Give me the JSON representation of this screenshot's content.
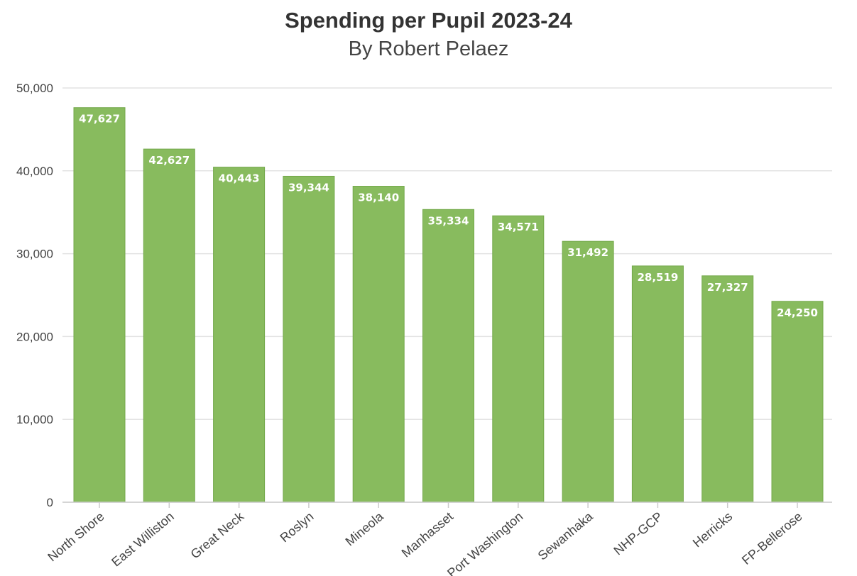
{
  "chart_data": {
    "type": "bar",
    "title": "Spending per Pupil 2023-24",
    "subtitle": "By Robert Pelaez",
    "categories": [
      "North Shore",
      "East Williston",
      "Great Neck",
      "Roslyn",
      "Mineola",
      "Manhasset",
      "Port Washington",
      "Sewanhaka",
      "NHP-GCP",
      "Herricks",
      "FP-Bellerose"
    ],
    "values": [
      47627,
      42627,
      40443,
      39344,
      38140,
      35334,
      34571,
      31492,
      28519,
      27327,
      24250
    ],
    "data_labels": [
      "47,627",
      "42,627",
      "40,443",
      "39,344",
      "38,140",
      "35,334",
      "34,571",
      "31,492",
      "28,519",
      "27,327",
      "24,250"
    ],
    "y_ticks": [
      0,
      10000,
      20000,
      30000,
      40000,
      50000
    ],
    "y_tick_labels": [
      "0",
      "10,000",
      "20,000",
      "30,000",
      "40,000",
      "50,000"
    ],
    "ylim": [
      0,
      50000
    ],
    "xlabel": "",
    "ylabel": "",
    "grid": true,
    "legend": false,
    "bar_color": "#88bb5e",
    "bar_border_color": "#73a84a",
    "grid_color": "#e3e3e3"
  }
}
